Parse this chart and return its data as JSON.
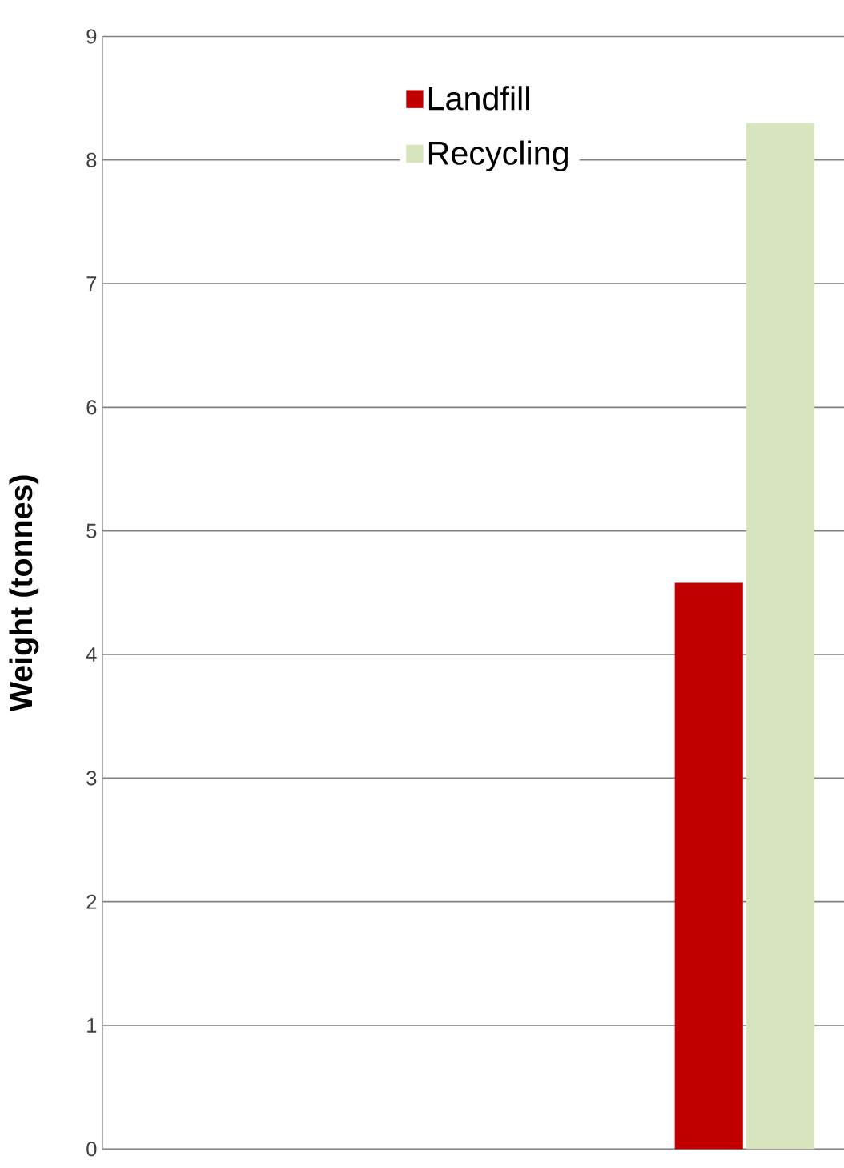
{
  "chart_data": {
    "type": "bar",
    "ylabel": "Weight (tonnes)",
    "categories": [
      null,
      null
    ],
    "series": [
      {
        "name": "Landfill",
        "color": "#c00000",
        "values": [
          null,
          4.58
        ]
      },
      {
        "name": "Recycling",
        "color": "#d7e4bd",
        "values": [
          null,
          8.3
        ]
      }
    ],
    "ylim": [
      0,
      9
    ],
    "yticks": [
      0,
      1,
      2,
      3,
      4,
      5,
      6,
      7,
      8,
      9
    ],
    "grid": "y",
    "legend": "top",
    "tick_labels": "y"
  }
}
